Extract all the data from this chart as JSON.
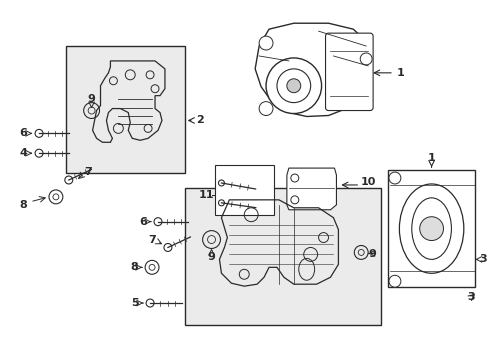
{
  "title": "",
  "bg_color": "#ffffff",
  "line_color": "#2a2a2a",
  "box_color": "#e8e8e8",
  "label_color": "#111111",
  "fig_width": 4.89,
  "fig_height": 3.6,
  "dpi": 100
}
